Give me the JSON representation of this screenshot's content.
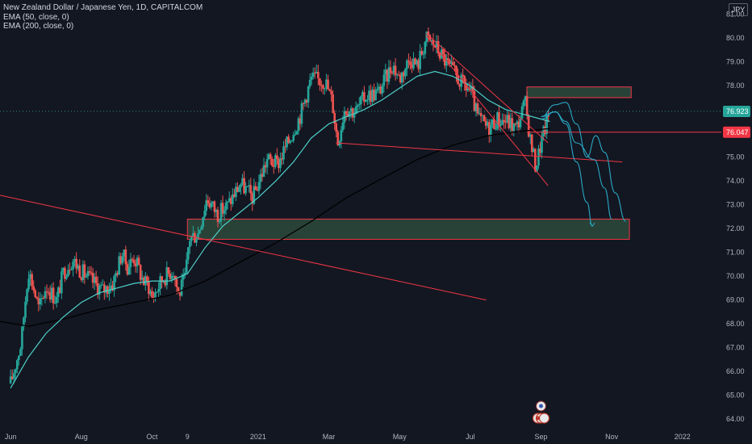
{
  "header": {
    "title": "New Zealand Dollar / Japanese Yen, 1D, CAPITALCOM",
    "indicators": [
      "EMA (50, close, 0)",
      "EMA (200, close, 0)"
    ],
    "currency": "JPY"
  },
  "colors": {
    "background": "#131722",
    "up_candle": "#26a69a",
    "down_candle": "#ef5350",
    "ema50": "#4dd0c8",
    "ema200": "#000000",
    "trendline": "#f23645",
    "zone_fill": "#2e4a3c",
    "zone_border": "#f23645",
    "projection": "#2aa8c4",
    "last_price_tag": "#26a69a",
    "level_tag": "#f23645"
  },
  "chart_data": {
    "type": "candlestick",
    "title": "New Zealand Dollar / Japanese Yen, 1D, CAPITALCOM",
    "y_axis": {
      "ticks": [
        64,
        65,
        66,
        67,
        68,
        69,
        70,
        71,
        72,
        73,
        74,
        75,
        76,
        77,
        78,
        79,
        80,
        81
      ],
      "tick_labels": [
        "64.00",
        "65.00",
        "66.00",
        "67.00",
        "68.00",
        "69.00",
        "70.00",
        "71.00",
        "72.00",
        "73.00",
        "74.00",
        "75.00",
        "76.00",
        "77.00",
        "78.00",
        "79.00",
        "80.00",
        "81.00"
      ],
      "range": [
        63.7,
        81.6
      ]
    },
    "x_axis": {
      "labels": [
        "Jun",
        "Aug",
        "Oct",
        "9",
        "2021",
        "Mar",
        "May",
        "Jul",
        "Sep",
        "Nov",
        "2022"
      ],
      "label_months": [
        0,
        2,
        4,
        5,
        7,
        9,
        11,
        13,
        15,
        17,
        19
      ],
      "range_months": [
        -0.3,
        20.1
      ]
    },
    "price_path": [
      [
        0.0,
        65.5
      ],
      [
        0.3,
        67.2
      ],
      [
        0.5,
        70.3
      ],
      [
        0.65,
        69.5
      ],
      [
        0.8,
        68.6
      ],
      [
        1.0,
        69.6
      ],
      [
        1.3,
        69.0
      ],
      [
        1.5,
        70.2
      ],
      [
        1.75,
        70.7
      ],
      [
        2.0,
        70.2
      ],
      [
        2.3,
        69.8
      ],
      [
        2.6,
        69.4
      ],
      [
        2.9,
        69.7
      ],
      [
        3.15,
        71.0
      ],
      [
        3.3,
        70.4
      ],
      [
        3.5,
        70.8
      ],
      [
        3.75,
        69.8
      ],
      [
        3.9,
        69.6
      ],
      [
        4.0,
        69.1
      ],
      [
        4.3,
        69.9
      ],
      [
        4.6,
        70.3
      ],
      [
        4.75,
        69.2
      ],
      [
        4.95,
        70.0
      ],
      [
        5.05,
        71.6
      ],
      [
        5.3,
        71.8
      ],
      [
        5.55,
        73.3
      ],
      [
        5.85,
        72.6
      ],
      [
        6.15,
        73.0
      ],
      [
        6.5,
        73.9
      ],
      [
        6.85,
        73.3
      ],
      [
        7.25,
        74.9
      ],
      [
        7.55,
        74.7
      ],
      [
        7.9,
        75.8
      ],
      [
        8.2,
        76.8
      ],
      [
        8.5,
        78.3
      ],
      [
        8.9,
        78.2
      ],
      [
        9.1,
        77.3
      ],
      [
        9.25,
        75.6
      ],
      [
        9.45,
        77.1
      ],
      [
        9.75,
        76.9
      ],
      [
        10.05,
        77.6
      ],
      [
        10.4,
        77.7
      ],
      [
        10.8,
        78.9
      ],
      [
        11.0,
        78.3
      ],
      [
        11.3,
        79.2
      ],
      [
        11.5,
        78.8
      ],
      [
        11.75,
        80.0
      ],
      [
        12.0,
        79.7
      ],
      [
        12.35,
        78.9
      ],
      [
        12.75,
        78.1
      ],
      [
        13.0,
        77.8
      ],
      [
        13.2,
        76.7
      ],
      [
        13.5,
        76.2
      ],
      [
        13.75,
        76.6
      ],
      [
        14.05,
        76.5
      ],
      [
        14.3,
        76.2
      ],
      [
        14.55,
        77.3
      ],
      [
        14.7,
        75.7
      ],
      [
        14.85,
        74.6
      ],
      [
        15.0,
        75.6
      ],
      [
        15.15,
        76.4
      ],
      [
        15.25,
        76.9
      ]
    ],
    "ema50": [
      [
        0.0,
        65.3
      ],
      [
        0.5,
        66.6
      ],
      [
        1.0,
        67.6
      ],
      [
        1.5,
        68.3
      ],
      [
        2.0,
        68.9
      ],
      [
        2.5,
        69.3
      ],
      [
        3.0,
        69.5
      ],
      [
        3.5,
        69.7
      ],
      [
        4.0,
        69.8
      ],
      [
        4.5,
        69.8
      ],
      [
        5.0,
        70.1
      ],
      [
        5.5,
        71.2
      ],
      [
        6.0,
        72.1
      ],
      [
        6.5,
        72.7
      ],
      [
        7.0,
        73.3
      ],
      [
        7.5,
        74.0
      ],
      [
        8.0,
        74.8
      ],
      [
        8.5,
        75.8
      ],
      [
        9.0,
        76.4
      ],
      [
        9.5,
        76.7
      ],
      [
        10.0,
        77.0
      ],
      [
        10.5,
        77.4
      ],
      [
        11.0,
        77.9
      ],
      [
        11.5,
        78.4
      ],
      [
        12.0,
        78.6
      ],
      [
        12.5,
        78.4
      ],
      [
        13.0,
        78.0
      ],
      [
        13.5,
        77.4
      ],
      [
        14.0,
        77.0
      ],
      [
        14.5,
        76.8
      ],
      [
        15.0,
        76.6
      ],
      [
        15.25,
        76.5
      ]
    ],
    "ema200": [
      [
        -0.3,
        68.1
      ],
      [
        0.5,
        67.9
      ],
      [
        1.5,
        68.2
      ],
      [
        2.5,
        68.6
      ],
      [
        3.5,
        68.9
      ],
      [
        4.5,
        69.2
      ],
      [
        5.5,
        69.8
      ],
      [
        6.5,
        70.6
      ],
      [
        7.5,
        71.4
      ],
      [
        8.5,
        72.3
      ],
      [
        9.5,
        73.3
      ],
      [
        10.5,
        74.1
      ],
      [
        11.5,
        74.9
      ],
      [
        12.5,
        75.5
      ],
      [
        13.5,
        75.9
      ],
      [
        14.5,
        76.1
      ],
      [
        15.25,
        76.2
      ]
    ],
    "trendlines": [
      [
        [
          -0.3,
          73.4
        ],
        [
          13.45,
          69.0
        ]
      ],
      [
        [
          9.2,
          75.6
        ],
        [
          17.3,
          74.8
        ]
      ],
      [
        [
          11.75,
          80.2
        ],
        [
          15.2,
          75.6
        ]
      ],
      [
        [
          11.75,
          80.1
        ],
        [
          15.2,
          73.8
        ]
      ]
    ],
    "zones": [
      {
        "x0": 5.0,
        "x1": 17.5,
        "y0": 71.55,
        "y1": 72.4
      },
      {
        "x0": 14.6,
        "x1": 17.55,
        "y0": 77.5,
        "y1": 77.95
      }
    ],
    "horizontal_lines": [
      {
        "y": 76.047,
        "x0": 14.6,
        "x1": 20.1,
        "label": "76.047"
      }
    ],
    "last_price": {
      "y": 76.923,
      "label": "76.923"
    },
    "projections": [
      [
        [
          15.0,
          76.6
        ],
        [
          15.4,
          76.9
        ],
        [
          15.7,
          76.4
        ],
        [
          16.0,
          74.8
        ],
        [
          16.3,
          73.1
        ],
        [
          16.45,
          72.1
        ]
      ],
      [
        [
          15.0,
          76.7
        ],
        [
          15.4,
          77.2
        ],
        [
          15.7,
          77.3
        ],
        [
          16.0,
          76.4
        ],
        [
          16.3,
          75.0
        ],
        [
          16.55,
          75.9
        ],
        [
          16.8,
          75.2
        ],
        [
          17.1,
          73.5
        ],
        [
          17.4,
          72.3
        ]
      ],
      [
        [
          15.0,
          76.7
        ],
        [
          15.4,
          76.9
        ],
        [
          15.7,
          76.5
        ],
        [
          16.0,
          75.6
        ],
        [
          16.5,
          74.9
        ],
        [
          16.8,
          73.7
        ],
        [
          17.0,
          72.4
        ]
      ]
    ]
  }
}
